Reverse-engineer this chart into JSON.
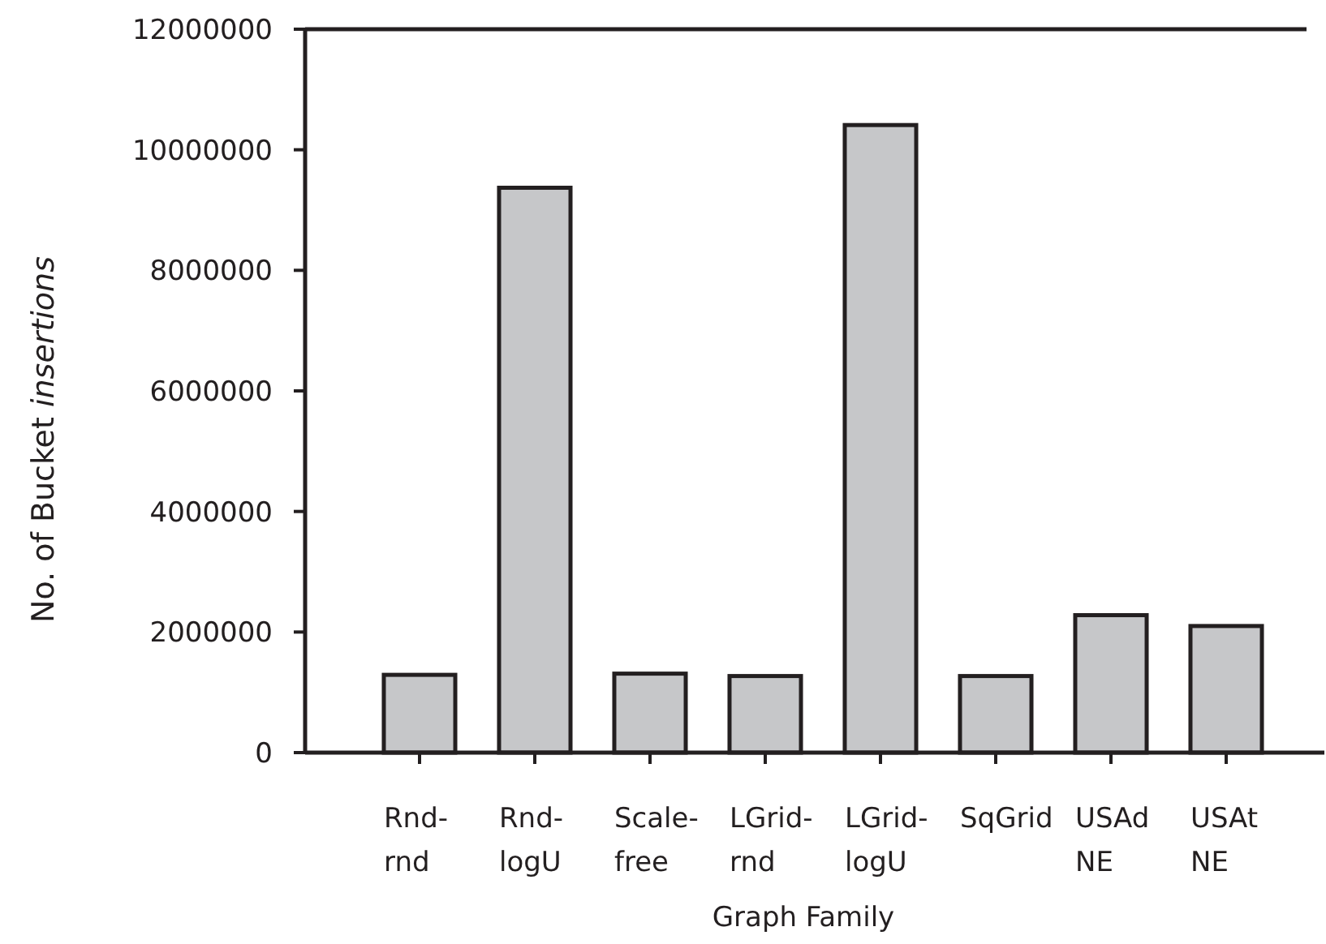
{
  "chart_data": {
    "type": "bar",
    "xlabel": "Graph Family",
    "ylabel": "No. of Bucket insertions",
    "categories": [
      "Rnd-rnd",
      "Rnd-logU",
      "Scale-free",
      "LGrid-rnd",
      "LGrid-logU",
      "SqGrid",
      "USAd NE",
      "USAt NE"
    ],
    "values": [
      1290000,
      9370000,
      1310000,
      1270000,
      10410000,
      1270000,
      2280000,
      2100000
    ],
    "color": "#c6c7c9",
    "ylim": [
      0,
      12000000
    ],
    "yticks": [
      0,
      2000000,
      4000000,
      6000000,
      8000000,
      10000000,
      12000000
    ],
    "grid": false
  }
}
